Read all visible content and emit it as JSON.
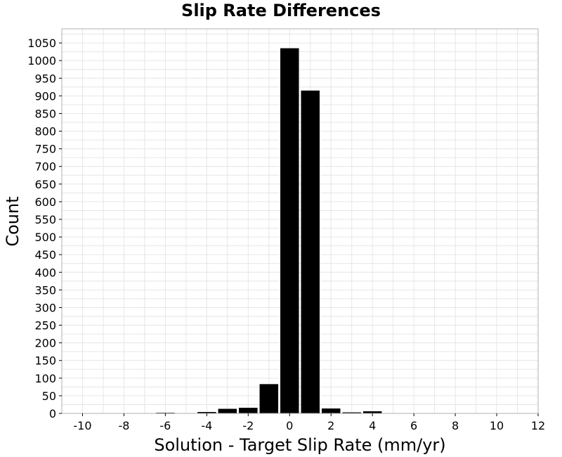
{
  "chart_data": {
    "type": "bar",
    "title": "Slip Rate Differences",
    "xlabel": "Solution - Target Slip Rate (mm/yr)",
    "ylabel": "Count",
    "xlim": [
      -11,
      12
    ],
    "ylim": [
      0,
      1090
    ],
    "xticks": [
      -10,
      -8,
      -6,
      -4,
      -2,
      0,
      2,
      4,
      6,
      8,
      10,
      12
    ],
    "yticks": [
      0,
      50,
      100,
      150,
      200,
      250,
      300,
      350,
      400,
      450,
      500,
      550,
      600,
      650,
      700,
      750,
      800,
      850,
      900,
      950,
      1000,
      1050
    ],
    "bin_width": 1,
    "bins": [
      {
        "x": -6,
        "value": 2
      },
      {
        "x": -4,
        "value": 4
      },
      {
        "x": -3,
        "value": 13
      },
      {
        "x": -2,
        "value": 16
      },
      {
        "x": -1,
        "value": 83
      },
      {
        "x": 0,
        "value": 1035
      },
      {
        "x": 1,
        "value": 915
      },
      {
        "x": 2,
        "value": 14
      },
      {
        "x": 3,
        "value": 3
      },
      {
        "x": 4,
        "value": 6
      }
    ],
    "grid": true,
    "colors": {
      "bar": "#000000",
      "grid": "#e6e6e6",
      "frame": "#b0b0b0"
    }
  }
}
